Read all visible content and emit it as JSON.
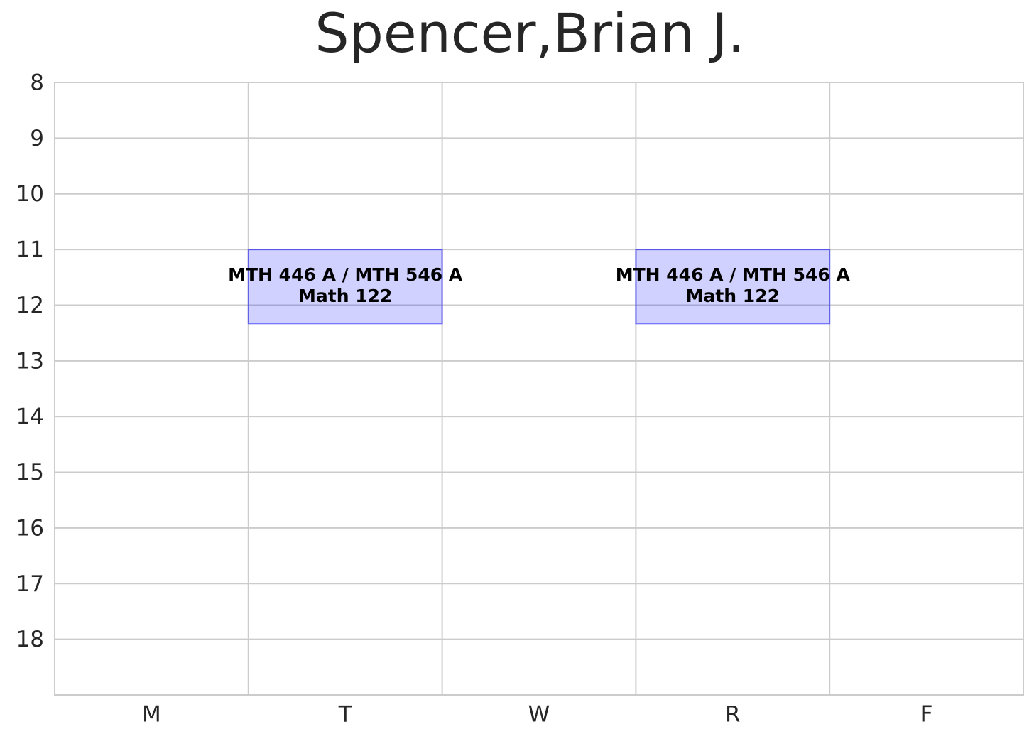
{
  "chart_data": {
    "type": "schedule",
    "title": "Spencer,Brian J.",
    "categories": [
      "M",
      "T",
      "W",
      "R",
      "F"
    ],
    "ylim": [
      8,
      19
    ],
    "inverted": true,
    "yticks": [
      8,
      9,
      10,
      11,
      12,
      13,
      14,
      15,
      16,
      17,
      18
    ],
    "grid": true,
    "color": "#0000ff",
    "events": [
      {
        "day": "T",
        "start": 11,
        "end": 12.33,
        "course": "MTH 446 A / MTH 546 A",
        "room": "Math 122"
      },
      {
        "day": "R",
        "start": 11,
        "end": 12.33,
        "course": "MTH 446 A / MTH 546 A",
        "room": "Math 122"
      }
    ]
  }
}
